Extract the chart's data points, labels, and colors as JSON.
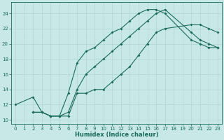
{
  "xlabel": "Humidex (Indice chaleur)",
  "ylabel": "",
  "bg_color": "#c8e8e8",
  "line_color": "#1a6b5a",
  "grid_color": "#b0d4d4",
  "xlim": [
    -0.5,
    23.5
  ],
  "ylim": [
    9.5,
    25.5
  ],
  "xticks": [
    0,
    1,
    2,
    3,
    4,
    5,
    6,
    7,
    8,
    9,
    10,
    11,
    12,
    13,
    14,
    15,
    16,
    17,
    18,
    19,
    20,
    21,
    22,
    23
  ],
  "yticks": [
    10,
    12,
    14,
    16,
    18,
    20,
    22,
    24
  ],
  "curve1_x": [
    0,
    2,
    3,
    4,
    5,
    6,
    7,
    8,
    9,
    10,
    11,
    12,
    13,
    14,
    15,
    16,
    17,
    20,
    21,
    22,
    23
  ],
  "curve1_y": [
    12,
    13,
    11,
    10.5,
    10.5,
    13.5,
    17.5,
    19,
    19.5,
    20.5,
    21.5,
    22,
    23,
    24,
    24.5,
    24.5,
    24,
    20.5,
    20,
    19.5,
    19.5
  ],
  "curve2_x": [
    2,
    3,
    4,
    5,
    6,
    7,
    8,
    9,
    10,
    11,
    12,
    13,
    14,
    15,
    16,
    17,
    20,
    21,
    22,
    23
  ],
  "curve2_y": [
    11,
    11,
    10.5,
    10.5,
    10.5,
    13.5,
    13.5,
    14,
    14,
    15,
    16,
    17,
    18.5,
    20,
    21.5,
    22,
    22.5,
    22.5,
    22,
    21.5
  ],
  "curve3_x": [
    2,
    3,
    4,
    5,
    6,
    7,
    8,
    9,
    10,
    11,
    12,
    13,
    14,
    15,
    16,
    17,
    20,
    21,
    22,
    23
  ],
  "curve3_y": [
    11,
    11,
    10.5,
    10.5,
    11,
    14,
    16,
    17,
    18,
    19,
    20,
    21,
    22,
    23,
    24,
    24.5,
    21.5,
    20.5,
    20,
    19.5
  ],
  "xlabel_fontsize": 6.0,
  "tick_fontsize": 5.0,
  "linewidth": 0.8,
  "markersize": 2.0
}
